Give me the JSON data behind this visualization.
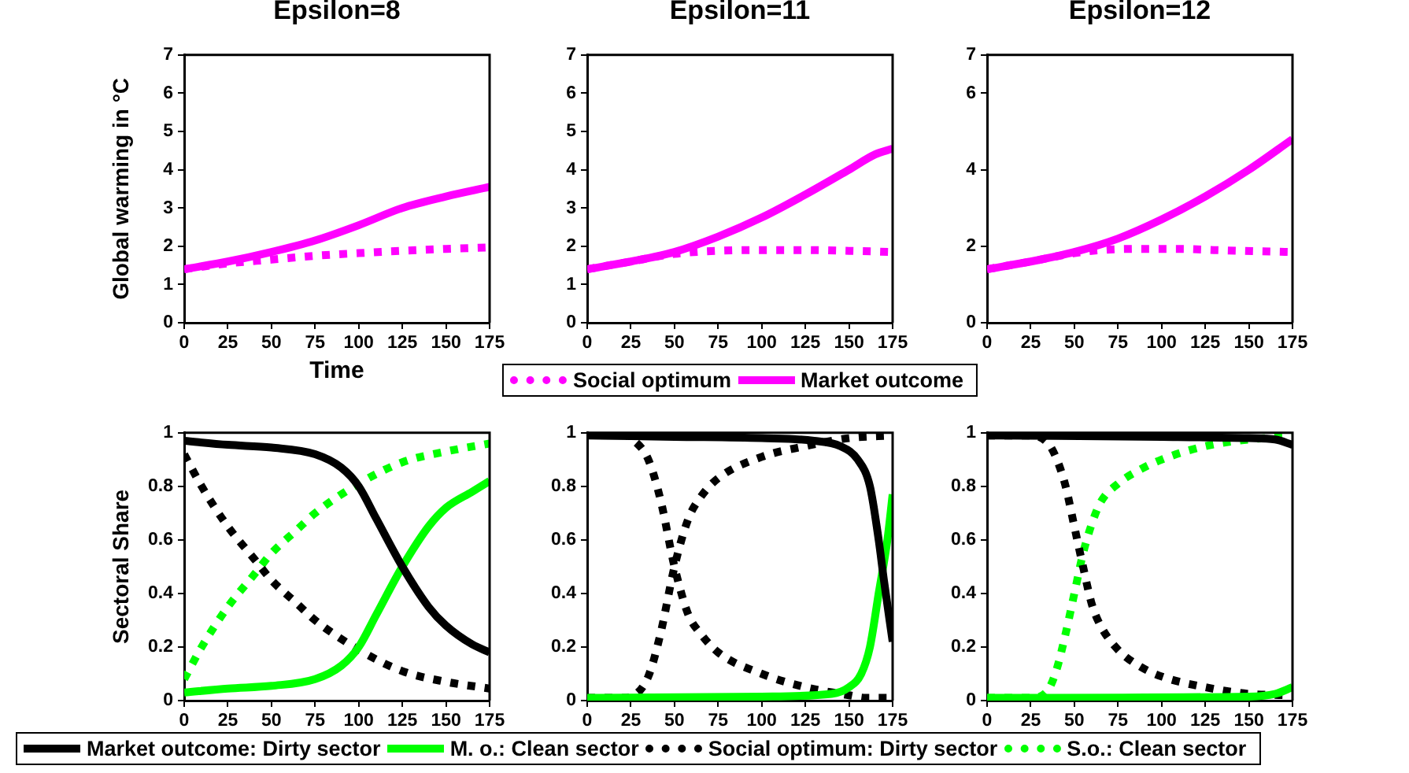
{
  "chart_data": [
    {
      "type": "line",
      "title": "Epsilon=8",
      "xlabel": "Time",
      "ylabel": "Global warming in °C",
      "xlim": [
        0,
        175
      ],
      "xticks": [
        0,
        25,
        50,
        75,
        100,
        125,
        150,
        175
      ],
      "ylim": [
        0,
        7
      ],
      "yticks": [
        0,
        1,
        2,
        3,
        4,
        5,
        6,
        7
      ],
      "marker": "none",
      "legend": "bottom",
      "series": [
        {
          "name": "Social optimum",
          "color": "#ff00ff",
          "line_style": "dotted",
          "x": [
            0,
            25,
            50,
            75,
            100,
            125,
            150,
            175
          ],
          "values": [
            1.4,
            1.55,
            1.65,
            1.75,
            1.82,
            1.88,
            1.93,
            1.97
          ]
        },
        {
          "name": "Market outcome",
          "color": "#ff00ff",
          "line_style": "solid",
          "x": [
            0,
            25,
            50,
            75,
            100,
            125,
            150,
            175
          ],
          "values": [
            1.4,
            1.6,
            1.85,
            2.15,
            2.55,
            3.0,
            3.3,
            3.55
          ]
        }
      ]
    },
    {
      "type": "line",
      "title": "Epsilon=11",
      "xlim": [
        0,
        175
      ],
      "xticks": [
        0,
        25,
        50,
        75,
        100,
        125,
        150,
        175
      ],
      "ylim": [
        0,
        7
      ],
      "yticks": [
        0,
        1,
        2,
        3,
        4,
        5,
        6,
        7
      ],
      "marker": "none",
      "series": [
        {
          "color": "#ff00ff",
          "line_style": "dotted",
          "x": [
            0,
            25,
            50,
            75,
            100,
            125,
            150,
            175
          ],
          "values": [
            1.4,
            1.6,
            1.8,
            1.88,
            1.9,
            1.9,
            1.88,
            1.85
          ]
        },
        {
          "color": "#ff00ff",
          "line_style": "solid",
          "x": [
            0,
            25,
            50,
            75,
            100,
            125,
            150,
            165,
            175
          ],
          "values": [
            1.4,
            1.6,
            1.85,
            2.25,
            2.75,
            3.35,
            4.0,
            4.4,
            4.55
          ]
        }
      ]
    },
    {
      "type": "line",
      "title": "Epsilon=12",
      "xlim": [
        0,
        175
      ],
      "xticks": [
        0,
        25,
        50,
        75,
        100,
        125,
        150,
        175
      ],
      "ylim": [
        0,
        7
      ],
      "yticks": [
        0,
        2,
        4,
        6,
        7
      ],
      "marker": "none",
      "series": [
        {
          "color": "#ff00ff",
          "line_style": "dotted",
          "x": [
            0,
            25,
            50,
            65,
            87,
            110,
            130,
            155,
            175
          ],
          "values": [
            1.4,
            1.6,
            1.82,
            1.9,
            1.93,
            1.93,
            1.9,
            1.87,
            1.85
          ]
        },
        {
          "color": "#ff00ff",
          "line_style": "solid",
          "x": [
            0,
            25,
            50,
            75,
            100,
            125,
            150,
            175
          ],
          "values": [
            1.4,
            1.6,
            1.85,
            2.2,
            2.7,
            3.3,
            4.0,
            4.8
          ]
        }
      ]
    },
    {
      "type": "line",
      "ylabel": "Sectoral Share",
      "xlim": [
        0,
        175
      ],
      "xticks": [
        0,
        25,
        50,
        75,
        100,
        125,
        150,
        175
      ],
      "ylim": [
        0,
        1
      ],
      "yticks": [
        0,
        0.2,
        0.4,
        0.6,
        0.8,
        1
      ],
      "marker": "none",
      "legend": "bottom",
      "series": [
        {
          "name": "Market outcome: Dirty sector",
          "color": "#000000",
          "line_style": "solid",
          "x": [
            0,
            25,
            50,
            75,
            90,
            100,
            110,
            125,
            140,
            150,
            165,
            175
          ],
          "values": [
            0.97,
            0.955,
            0.945,
            0.92,
            0.87,
            0.8,
            0.68,
            0.5,
            0.35,
            0.28,
            0.21,
            0.18
          ]
        },
        {
          "name": "M. o.: Clean sector",
          "color": "#00ff00",
          "line_style": "solid",
          "x": [
            0,
            25,
            50,
            75,
            90,
            100,
            110,
            125,
            140,
            150,
            165,
            175
          ],
          "values": [
            0.03,
            0.045,
            0.055,
            0.08,
            0.13,
            0.2,
            0.32,
            0.5,
            0.65,
            0.72,
            0.78,
            0.82
          ]
        },
        {
          "name": "Social optimum: Dirty sector",
          "color": "#000000",
          "line_style": "dotted",
          "x": [
            0,
            10,
            25,
            40,
            50,
            65,
            75,
            100,
            125,
            150,
            175
          ],
          "values": [
            0.92,
            0.8,
            0.65,
            0.53,
            0.45,
            0.36,
            0.3,
            0.19,
            0.11,
            0.07,
            0.045
          ]
        },
        {
          "name": "S.o.: Clean sector",
          "color": "#00ff00",
          "line_style": "dotted",
          "x": [
            0,
            10,
            25,
            40,
            50,
            65,
            75,
            100,
            125,
            150,
            175
          ],
          "values": [
            0.08,
            0.2,
            0.35,
            0.47,
            0.55,
            0.64,
            0.7,
            0.81,
            0.89,
            0.93,
            0.96
          ]
        }
      ]
    },
    {
      "type": "line",
      "xlim": [
        0,
        175
      ],
      "xticks": [
        0,
        25,
        50,
        75,
        100,
        125,
        150,
        175
      ],
      "ylim": [
        0,
        1
      ],
      "yticks": [
        0,
        0.2,
        0.4,
        0.6,
        0.8,
        1
      ],
      "marker": "none",
      "series": [
        {
          "color": "#000000",
          "line_style": "solid",
          "x": [
            0,
            50,
            100,
            130,
            145,
            155,
            162,
            167,
            170,
            175
          ],
          "values": [
            0.99,
            0.985,
            0.98,
            0.97,
            0.95,
            0.9,
            0.8,
            0.6,
            0.45,
            0.22
          ]
        },
        {
          "color": "#00ff00",
          "line_style": "solid",
          "x": [
            0,
            100,
            140,
            150,
            157,
            162,
            167,
            172,
            175
          ],
          "values": [
            0.01,
            0.015,
            0.025,
            0.05,
            0.1,
            0.2,
            0.4,
            0.6,
            0.77
          ]
        },
        {
          "color": "#000000",
          "line_style": "dotted",
          "x": [
            0,
            20,
            27,
            35,
            42,
            50,
            58,
            65,
            75,
            100,
            125,
            150,
            160,
            175
          ],
          "values": [
            1,
            0.995,
            0.97,
            0.9,
            0.75,
            0.5,
            0.32,
            0.25,
            0.18,
            0.1,
            0.05,
            0.02,
            0.01,
            0.01
          ]
        },
        {
          "color": "#000000",
          "line_style": "dotted",
          "x": [
            0,
            20,
            27,
            35,
            42,
            50,
            58,
            65,
            75,
            100,
            125,
            150,
            175
          ],
          "values": [
            0.01,
            0.01,
            0.02,
            0.09,
            0.25,
            0.5,
            0.68,
            0.76,
            0.83,
            0.91,
            0.95,
            0.98,
            0.99
          ]
        }
      ]
    },
    {
      "type": "line",
      "xlim": [
        0,
        175
      ],
      "xticks": [
        0,
        25,
        50,
        75,
        100,
        125,
        150,
        175
      ],
      "ylim": [
        0,
        1
      ],
      "yticks": [
        0,
        0.2,
        0.4,
        0.6,
        0.8,
        1
      ],
      "marker": "none",
      "series": [
        {
          "color": "#000000",
          "line_style": "solid",
          "x": [
            0,
            100,
            150,
            165,
            175
          ],
          "values": [
            0.99,
            0.985,
            0.98,
            0.975,
            0.955
          ]
        },
        {
          "color": "#00ff00",
          "line_style": "solid",
          "x": [
            0,
            150,
            165,
            175
          ],
          "values": [
            0.01,
            0.015,
            0.025,
            0.05
          ]
        },
        {
          "color": "#000000",
          "line_style": "dotted",
          "x": [
            0,
            25,
            35,
            40,
            45,
            50,
            55,
            60,
            65,
            75,
            87,
            100,
            125,
            150,
            175
          ],
          "values": [
            0.99,
            0.99,
            0.96,
            0.9,
            0.8,
            0.65,
            0.5,
            0.36,
            0.28,
            0.19,
            0.13,
            0.09,
            0.05,
            0.025,
            0.02
          ]
        },
        {
          "color": "#00ff00",
          "line_style": "dotted",
          "x": [
            0,
            25,
            35,
            40,
            45,
            50,
            55,
            60,
            65,
            75,
            87,
            100,
            125,
            150,
            175
          ],
          "values": [
            0.01,
            0.01,
            0.04,
            0.12,
            0.25,
            0.4,
            0.55,
            0.66,
            0.74,
            0.81,
            0.86,
            0.9,
            0.95,
            0.975,
            0.985
          ]
        }
      ]
    }
  ]
}
